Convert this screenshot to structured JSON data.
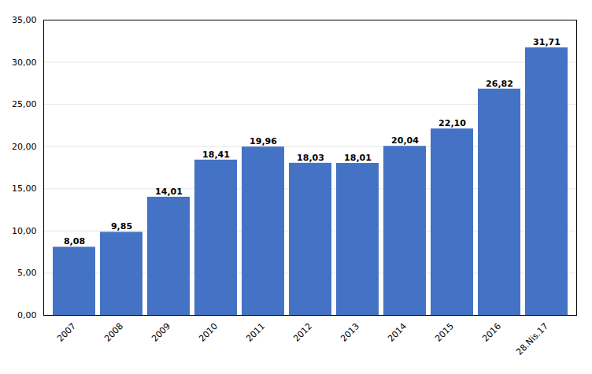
{
  "chart_data": {
    "type": "bar",
    "categories": [
      "2007",
      "2008",
      "2009",
      "2010",
      "2011",
      "2012",
      "2013",
      "2014",
      "2015",
      "2016",
      "28.Nis.17"
    ],
    "values": [
      8.08,
      9.85,
      14.01,
      18.41,
      19.96,
      18.03,
      18.01,
      20.04,
      22.1,
      26.82,
      31.71
    ],
    "value_labels": [
      "8,08",
      "9,85",
      "14,01",
      "18,41",
      "19,96",
      "18,03",
      "18,01",
      "20,04",
      "22,10",
      "26,82",
      "31,71"
    ],
    "data_labels": true,
    "color": "#4472C4",
    "ylim": [
      0,
      35
    ],
    "yticks": [
      {
        "value": 0,
        "label": "0,00"
      },
      {
        "value": 5,
        "label": "5,00"
      },
      {
        "value": 10,
        "label": "10,00"
      },
      {
        "value": 15,
        "label": "15,00"
      },
      {
        "value": 20,
        "label": "20,00"
      },
      {
        "value": 25,
        "label": "25,00"
      },
      {
        "value": 30,
        "label": "30,00"
      },
      {
        "value": 35,
        "label": "35,00"
      }
    ],
    "grid": true
  }
}
